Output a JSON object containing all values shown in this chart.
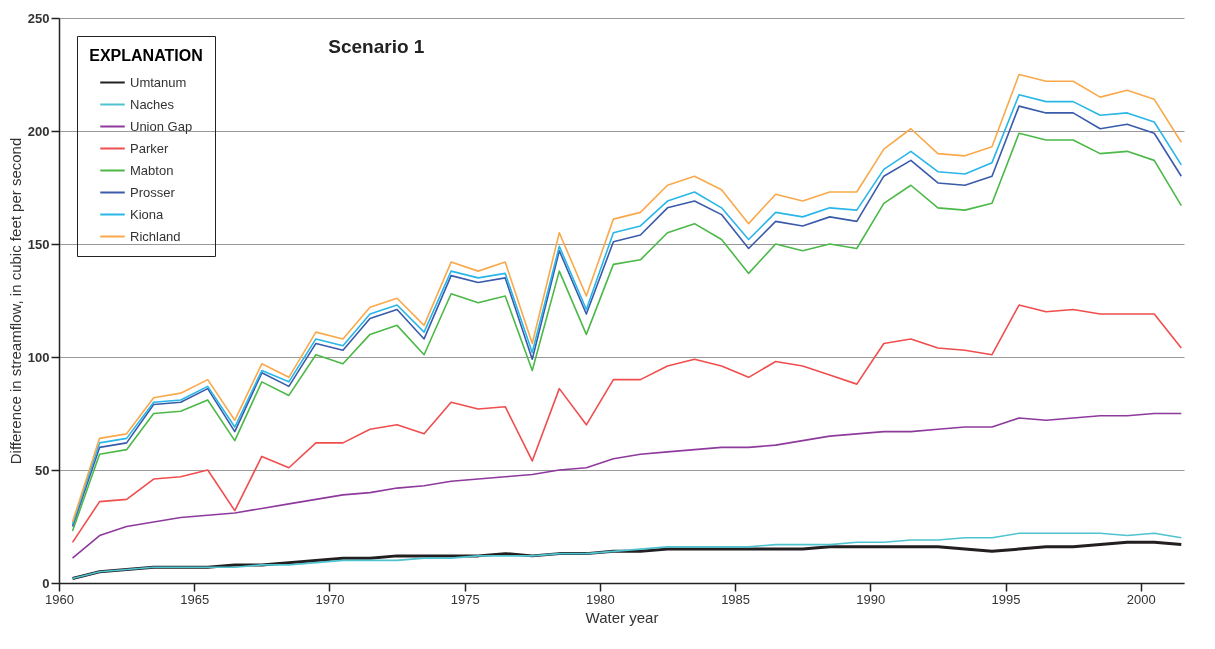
{
  "chart_data": {
    "type": "line",
    "title": "Scenario 1",
    "xlabel": "Water year",
    "ylabel": "Difference in streamflow, in cubic feet per second",
    "legend_title": "EXPLANATION",
    "legend": "top left",
    "grid": "y",
    "xlim": [
      1960,
      2001.6
    ],
    "xticks": [
      1960,
      1965,
      1970,
      1975,
      1980,
      1985,
      1990,
      1995,
      2000
    ],
    "ylim": [
      0,
      250
    ],
    "yticks": [
      0,
      50,
      100,
      150,
      200,
      250
    ],
    "x": [
      1960.5,
      1961.5,
      1962.5,
      1963.5,
      1964.5,
      1965.5,
      1966.5,
      1967.5,
      1968.5,
      1969.5,
      1970.5,
      1971.5,
      1972.5,
      1973.5,
      1974.5,
      1975.5,
      1976.5,
      1977.5,
      1978.5,
      1979.5,
      1980.5,
      1981.5,
      1982.5,
      1983.5,
      1984.5,
      1985.5,
      1986.5,
      1987.5,
      1988.5,
      1989.5,
      1990.5,
      1991.5,
      1992.5,
      1993.5,
      1994.5,
      1995.5,
      1996.5,
      1997.5,
      1998.5,
      1999.5,
      2000.5,
      2001.5
    ],
    "series": [
      {
        "name": "Umtanum",
        "color": "#231f20",
        "values": [
          2,
          5,
          6,
          7,
          7,
          7,
          8,
          8,
          9,
          10,
          11,
          11,
          12,
          12,
          12,
          12,
          13,
          12,
          13,
          13,
          14,
          14,
          15,
          15,
          15,
          15,
          15,
          15,
          16,
          16,
          16,
          16,
          16,
          15,
          14,
          15,
          16,
          16,
          17,
          18,
          18,
          17
        ]
      },
      {
        "name": "Naches",
        "color": "#4fc3d0",
        "values": [
          2,
          5,
          6,
          7,
          7,
          7,
          7,
          8,
          8,
          9,
          10,
          10,
          10,
          11,
          11,
          12,
          12,
          12,
          13,
          13,
          14,
          15,
          16,
          16,
          16,
          16,
          17,
          17,
          17,
          18,
          18,
          19,
          19,
          20,
          20,
          22,
          22,
          22,
          22,
          21,
          22,
          20
        ]
      },
      {
        "name": "Union Gap",
        "color": "#8e3a9c",
        "values": [
          11,
          21,
          25,
          27,
          29,
          30,
          31,
          33,
          35,
          37,
          39,
          40,
          42,
          43,
          45,
          46,
          47,
          48,
          50,
          51,
          55,
          57,
          58,
          59,
          60,
          60,
          61,
          63,
          65,
          66,
          67,
          67,
          68,
          69,
          69,
          73,
          72,
          73,
          74,
          74,
          75,
          75
        ]
      },
      {
        "name": "Parker",
        "color": "#f04e4e",
        "values": [
          18,
          36,
          37,
          46,
          47,
          50,
          32,
          56,
          51,
          62,
          62,
          68,
          70,
          66,
          80,
          77,
          78,
          54,
          86,
          70,
          90,
          90,
          96,
          99,
          96,
          91,
          98,
          96,
          92,
          88,
          106,
          108,
          104,
          103,
          101,
          123,
          120,
          121,
          119,
          119,
          119,
          104
        ]
      },
      {
        "name": "Mabton",
        "color": "#4cb848",
        "values": [
          23,
          57,
          59,
          75,
          76,
          81,
          63,
          89,
          83,
          101,
          97,
          110,
          114,
          101,
          128,
          124,
          127,
          94,
          138,
          110,
          141,
          143,
          155,
          159,
          152,
          137,
          150,
          147,
          150,
          148,
          168,
          176,
          166,
          165,
          168,
          199,
          196,
          196,
          190,
          191,
          187,
          167
        ]
      },
      {
        "name": "Prosser",
        "color": "#3a5ba9",
        "values": [
          25,
          60,
          62,
          79,
          80,
          86,
          67,
          93,
          87,
          106,
          103,
          117,
          121,
          108,
          136,
          133,
          135,
          99,
          147,
          119,
          151,
          154,
          166,
          169,
          163,
          148,
          160,
          158,
          162,
          160,
          180,
          187,
          177,
          176,
          180,
          211,
          208,
          208,
          201,
          203,
          199,
          180
        ]
      },
      {
        "name": "Kiona",
        "color": "#29b6e8",
        "values": [
          26,
          62,
          64,
          80,
          81,
          87,
          69,
          94,
          89,
          108,
          105,
          119,
          123,
          111,
          138,
          135,
          137,
          102,
          149,
          121,
          155,
          158,
          169,
          173,
          166,
          152,
          164,
          162,
          166,
          165,
          183,
          191,
          182,
          181,
          186,
          216,
          213,
          213,
          207,
          208,
          204,
          185
        ]
      },
      {
        "name": "Richland",
        "color": "#f9a94b",
        "values": [
          27,
          64,
          66,
          82,
          84,
          90,
          72,
          97,
          91,
          111,
          108,
          122,
          126,
          114,
          142,
          138,
          142,
          106,
          155,
          127,
          161,
          164,
          176,
          180,
          174,
          159,
          172,
          169,
          173,
          173,
          192,
          201,
          190,
          189,
          193,
          225,
          222,
          222,
          215,
          218,
          214,
          195
        ]
      }
    ]
  }
}
